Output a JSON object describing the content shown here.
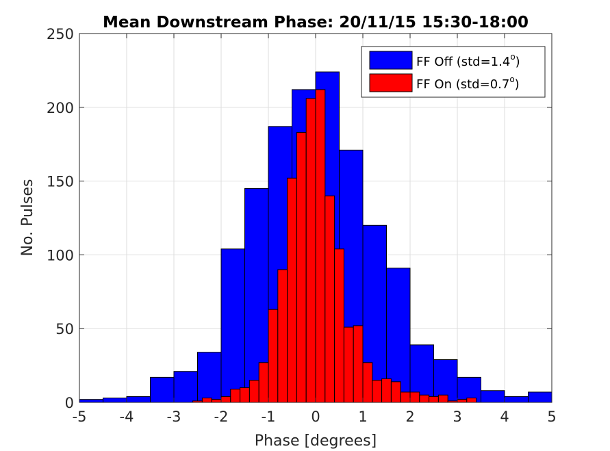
{
  "chart_data": {
    "type": "bar",
    "title": "Mean Downstream Phase: 20/11/15 15:30-18:00",
    "xlabel": "Phase [degrees]",
    "ylabel": "No. Pulses",
    "xlim": [
      -5,
      5
    ],
    "ylim": [
      0,
      250
    ],
    "xticks": [
      -5,
      -4,
      -3,
      -2,
      -1,
      0,
      1,
      2,
      3,
      4,
      5
    ],
    "yticks": [
      0,
      50,
      100,
      150,
      200,
      250
    ],
    "grid": true,
    "legend_position": "top-right",
    "series": [
      {
        "name": "FF Off (std=1.4",
        "name_sup": "o",
        "name_end": ")",
        "color": "#0000ff",
        "bin_width": 0.5,
        "bin_starts": [
          -5,
          -4.5,
          -4,
          -3.5,
          -3,
          -2.5,
          -2,
          -1.5,
          -1,
          -0.5,
          0,
          0.5,
          1,
          1.5,
          2,
          2.5,
          3,
          3.5,
          4,
          4.5
        ],
        "values": [
          2,
          3,
          4,
          17,
          21,
          34,
          104,
          145,
          187,
          212,
          224,
          171,
          120,
          91,
          39,
          29,
          17,
          8,
          4,
          7
        ]
      },
      {
        "name": "FF On (std=0.7",
        "name_sup": "o",
        "name_end": ")",
        "color": "#ff0000",
        "bin_width": 0.2,
        "bin_starts": [
          -2.6,
          -2.4,
          -2.2,
          -2.0,
          -1.8,
          -1.6,
          -1.4,
          -1.2,
          -1.0,
          -0.8,
          -0.6,
          -0.4,
          -0.2,
          0.0,
          0.2,
          0.4,
          0.6,
          0.8,
          1.0,
          1.2,
          1.4,
          1.6,
          1.8,
          2.0,
          2.2,
          2.4,
          2.6,
          2.8,
          3.0,
          3.2
        ],
        "values": [
          1,
          3,
          2,
          4,
          9,
          10,
          15,
          27,
          63,
          90,
          152,
          183,
          206,
          212,
          140,
          104,
          51,
          52,
          27,
          15,
          16,
          14,
          7,
          7,
          5,
          4,
          5,
          1,
          2,
          3
        ]
      }
    ]
  }
}
